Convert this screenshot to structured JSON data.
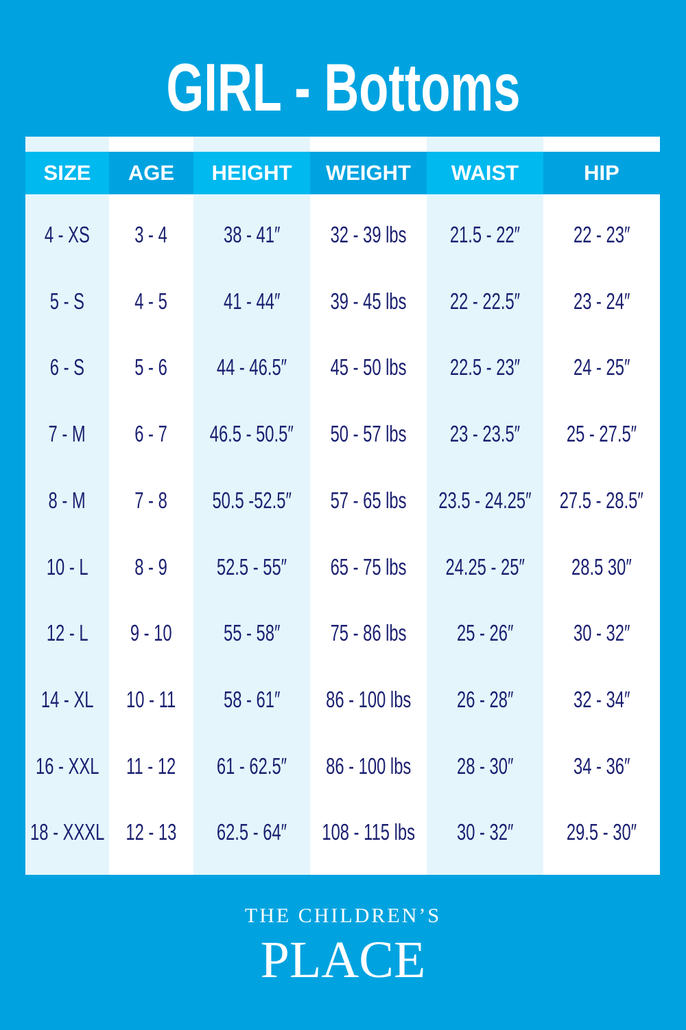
{
  "title": "GIRL - Bottoms",
  "colors": {
    "background": "#00a3e0",
    "header_light": "#00b9ef",
    "header_dark": "#00a3e0",
    "stripe": "#e4f5fc",
    "text": "#1b2070"
  },
  "table": {
    "headers": [
      "SIZE",
      "AGE",
      "HEIGHT",
      "WEIGHT",
      "WAIST",
      "HIP"
    ],
    "rows": [
      [
        "4 - XS",
        "3 - 4",
        "38 - 41″",
        "32 - 39 lbs",
        "21.5 - 22″",
        "22 - 23″"
      ],
      [
        "5 - S",
        "4 - 5",
        "41 - 44″",
        "39 - 45 lbs",
        "22 - 22.5″",
        "23 - 24″"
      ],
      [
        "6 - S",
        "5 - 6",
        "44 - 46.5″",
        "45 - 50 lbs",
        "22.5 - 23″",
        "24 - 25″"
      ],
      [
        "7 - M",
        "6 - 7",
        "46.5 - 50.5″",
        "50 - 57 lbs",
        "23 - 23.5″",
        "25 - 27.5″"
      ],
      [
        "8 - M",
        "7 - 8",
        "50.5 -52.5″",
        "57 - 65 lbs",
        "23.5 - 24.25″",
        "27.5 - 28.5″"
      ],
      [
        "10 - L",
        "8 - 9",
        "52.5 - 55″",
        "65 - 75 lbs",
        "24.25 - 25″",
        "28.5 30″"
      ],
      [
        "12 - L",
        "9 - 10",
        "55 - 58″",
        "75 - 86 lbs",
        "25 - 26″",
        "30 - 32″"
      ],
      [
        "14 - XL",
        "10 - 11",
        "58 - 61″",
        "86 - 100 lbs",
        "26 - 28″",
        "32 - 34″"
      ],
      [
        "16 - XXL",
        "11 - 12",
        "61 - 62.5″",
        "86 - 100 lbs",
        "28 - 30″",
        "34 - 36″"
      ],
      [
        "18 - XXXL",
        "12 - 13",
        "62.5 - 64″",
        "108 - 115 lbs",
        "30 - 32″",
        "29.5 - 30″"
      ]
    ]
  },
  "logo": {
    "line1": "THE CHILDREN’S",
    "line2": "PLACE"
  }
}
